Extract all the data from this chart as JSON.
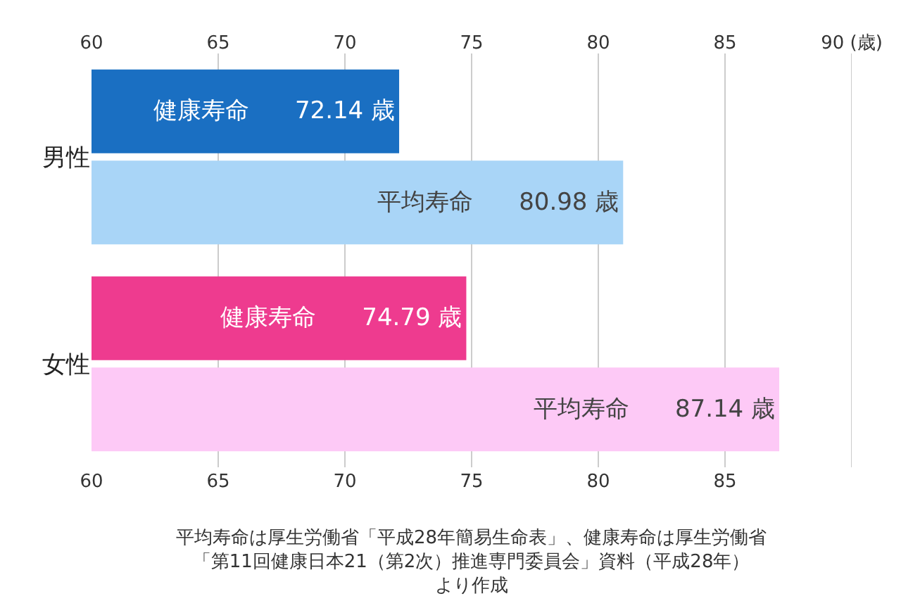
{
  "chart_data": {
    "type": "bar",
    "orientation": "horizontal",
    "categories": [
      "男性",
      "女性"
    ],
    "series": [
      {
        "name": "健康寿命",
        "colors": [
          "#1a6fc2",
          "#ee3b8f"
        ],
        "values": [
          72.14,
          74.79
        ],
        "value_labels": [
          "72.14 歳",
          "74.79 歳"
        ]
      },
      {
        "name": "平均寿命",
        "colors": [
          "#a9d5f7",
          "#fdc9f6"
        ],
        "values": [
          80.98,
          87.14
        ],
        "value_labels": [
          "80.98 歳",
          "87.14 歳"
        ]
      }
    ],
    "xlim": [
      60,
      90
    ],
    "xticks": [
      60,
      65,
      70,
      75,
      80,
      85,
      {
        "value": 90,
        "label": null
      }
    ],
    "x2lim": [
      60,
      90
    ],
    "x2ticks": [
      60,
      65,
      70,
      75,
      80,
      85,
      {
        "value": 90,
        "label": "90 (歳)"
      }
    ],
    "grid": "x",
    "annotations": [
      "平均寿命は厚生労働省「平成28年簡易生命表」、健康寿命は厚生労働省「第11回健康日本21（第2次）推進専門委員会」資料（平成28年）より作成"
    ]
  }
}
